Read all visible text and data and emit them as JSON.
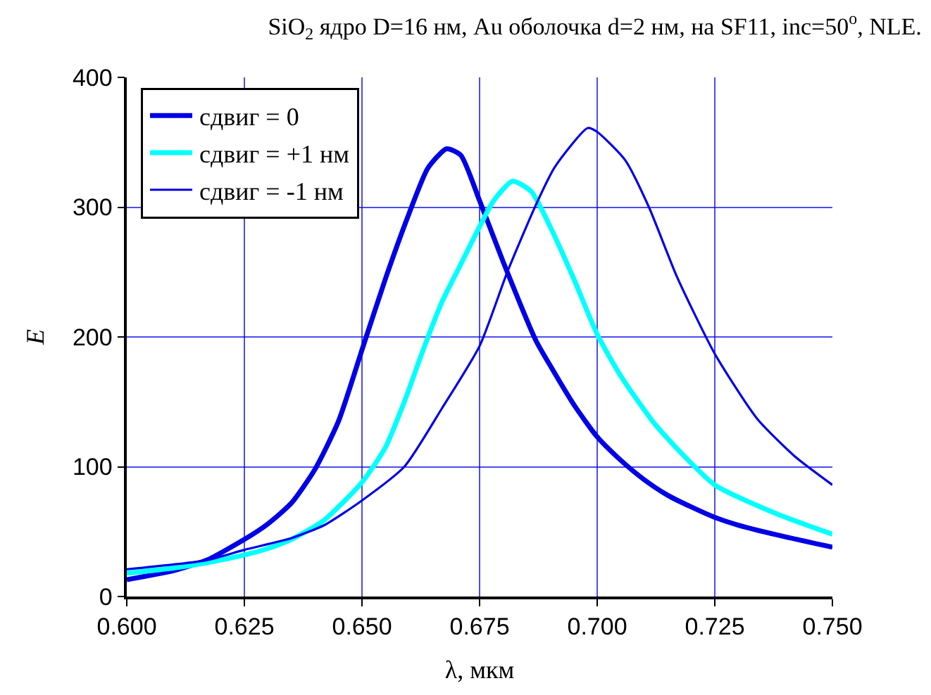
{
  "chart_data": {
    "type": "line",
    "title": "SiO$_{2}$ ядро D=16 нм, Au оболочка d=2 нм, на SF11, inc=50$^{o}$, NLE.",
    "xlabel": "λ, мкм",
    "ylabel": "E",
    "xlim": [
      0.6,
      0.75
    ],
    "xticks": [
      {
        "value": 0.6,
        "label": "0.600"
      },
      {
        "value": 0.625,
        "label": "0.625"
      },
      {
        "value": 0.65,
        "label": "0.650"
      },
      {
        "value": 0.675,
        "label": "0.675"
      },
      {
        "value": 0.7,
        "label": "0.700"
      },
      {
        "value": 0.725,
        "label": "0.725"
      },
      {
        "value": 0.75,
        "label": "0.750"
      }
    ],
    "ylim": [
      0,
      400
    ],
    "yticks": [
      0,
      100,
      200,
      300,
      400
    ],
    "grid": true,
    "legend": "top left",
    "marker": "none",
    "line_style": "solid",
    "series": [
      {
        "name": "сдвиг = 0",
        "color": "#0000e6",
        "x": [
          0.6,
          0.61,
          0.617,
          0.625,
          0.63,
          0.635,
          0.64,
          0.645,
          0.65,
          0.655,
          0.66,
          0.664,
          0.668,
          0.671,
          0.675,
          0.68,
          0.687,
          0.69,
          0.695,
          0.7,
          0.705,
          0.71,
          0.715,
          0.72,
          0.725,
          0.73,
          0.74,
          0.75
        ],
        "values": [
          13,
          20,
          28,
          44,
          56,
          72,
          98,
          135,
          190,
          245,
          295,
          330,
          345,
          340,
          305,
          258,
          197,
          178,
          148,
          123,
          105,
          90,
          78,
          69,
          61,
          55,
          46,
          38
        ]
      },
      {
        "name": "сдвиг = +1 нм",
        "color": "#00ffff",
        "x": [
          0.6,
          0.61,
          0.617,
          0.625,
          0.63,
          0.635,
          0.642,
          0.65,
          0.655,
          0.659,
          0.663,
          0.667,
          0.671,
          0.675,
          0.678,
          0.682,
          0.686,
          0.69,
          0.695,
          0.7,
          0.705,
          0.712,
          0.718,
          0.725,
          0.738,
          0.75
        ],
        "values": [
          18,
          22,
          26,
          32,
          37,
          44,
          59,
          88,
          115,
          150,
          190,
          227,
          256,
          285,
          305,
          320,
          312,
          285,
          245,
          202,
          170,
          134,
          110,
          86,
          64,
          48
        ]
      },
      {
        "name": "сдвиг = -1 нм",
        "color": "#0000e6",
        "x": [
          0.6,
          0.617,
          0.625,
          0.635,
          0.642,
          0.65,
          0.659,
          0.667,
          0.675,
          0.681,
          0.687,
          0.691,
          0.698,
          0.7,
          0.706,
          0.711,
          0.717,
          0.725,
          0.734,
          0.742,
          0.75
        ],
        "values": [
          21,
          28,
          36,
          45,
          55,
          74,
          100,
          145,
          193,
          251,
          302,
          331,
          361,
          358,
          336,
          300,
          246,
          187,
          137,
          108,
          86
        ]
      }
    ]
  }
}
